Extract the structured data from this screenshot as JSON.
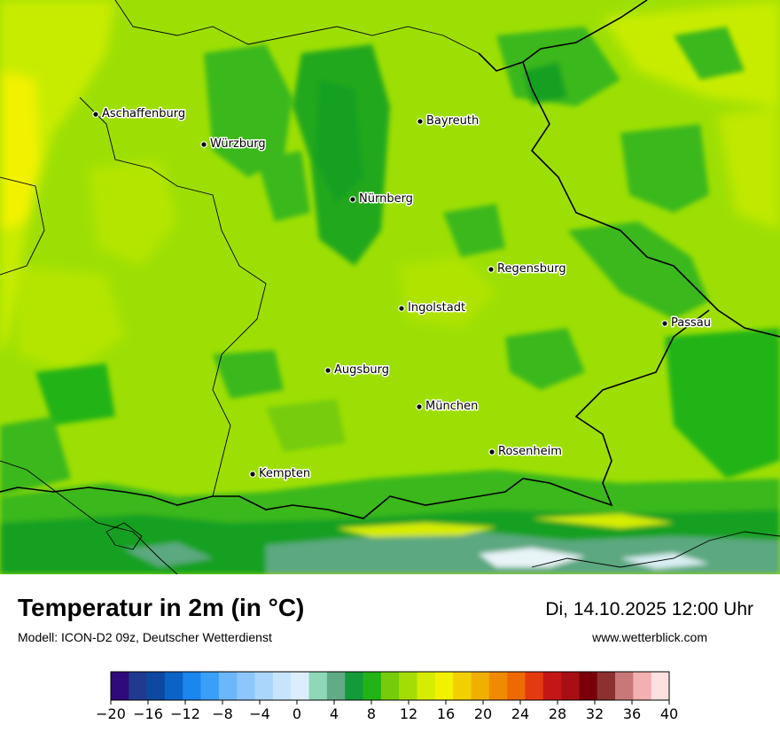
{
  "header": {
    "title": "Temperatur in 2m (in °C)",
    "subtitle": "Modell: ICON-D2 09z, Deutscher Wetterdienst",
    "datetime": "Di, 14.10.2025 12:00 Uhr",
    "website": "www.wetterblick.com"
  },
  "cities": [
    {
      "name": "Aschaffenburg"
    },
    {
      "name": "Würzburg"
    },
    {
      "name": "Bayreuth"
    },
    {
      "name": "Nürnberg"
    },
    {
      "name": "Regensburg"
    },
    {
      "name": "Ingolstadt"
    },
    {
      "name": "Passau"
    },
    {
      "name": "Augsburg"
    },
    {
      "name": "München"
    },
    {
      "name": "Rosenheim"
    },
    {
      "name": "Kempten"
    }
  ],
  "legend": {
    "min": -20,
    "max": 40,
    "step": 2,
    "tick_labels": [
      "−20",
      "−16",
      "−12",
      "−8",
      "−4",
      "0",
      "4",
      "8",
      "12",
      "16",
      "20",
      "24",
      "28",
      "32",
      "36",
      "40"
    ],
    "colors": [
      "#2e0a7a",
      "#1f3a8f",
      "#0b4aa0",
      "#0b63c8",
      "#1a86ee",
      "#3aa0f7",
      "#6cb6fa",
      "#8cc6fb",
      "#abd6fc",
      "#c8e4fd",
      "#dceefe",
      "#8ed8b8",
      "#62ab86",
      "#139b39",
      "#22b316",
      "#76cc0b",
      "#a4dd05",
      "#d6ec00",
      "#f2f200",
      "#f2d000",
      "#f0b000",
      "#f08a00",
      "#ee6a00",
      "#e43a10",
      "#c41616",
      "#a80f14",
      "#7a0008",
      "#8c3030",
      "#c87878",
      "#f2b0b0",
      "#fde0e0"
    ]
  },
  "map_colors": {
    "warm": "#c8ec00",
    "mid": "#9ddf04",
    "green": "#3ab81a",
    "dark_green": "#14a020",
    "alpine": "#5ca880",
    "snow": "#e8f4f8",
    "border": "#000000"
  }
}
